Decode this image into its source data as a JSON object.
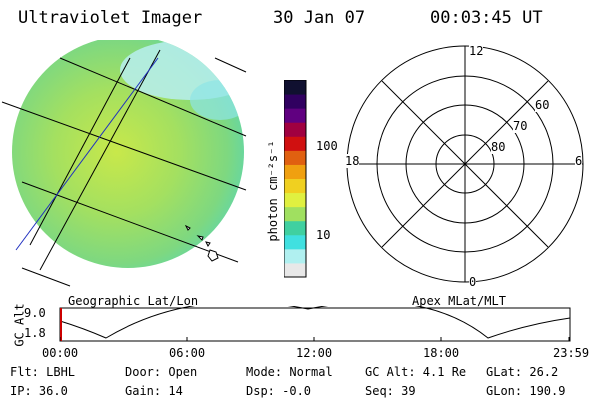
{
  "header": {
    "title": "Ultraviolet Imager",
    "date": "30 Jan 07",
    "time": "00:03:45 UT"
  },
  "colorbar": {
    "unit": "photon cm⁻²s⁻¹",
    "tick_high": "100",
    "tick_low": "10",
    "colors": [
      "#e8e8e8",
      "#b0f0f0",
      "#40e0e0",
      "#40d0a0",
      "#a0e060",
      "#e0f040",
      "#f0d020",
      "#f0a010",
      "#e06010",
      "#d01010",
      "#a00040",
      "#600080",
      "#300060",
      "#101030"
    ]
  },
  "left_panel": {
    "caption": "Geographic Lat/Lon",
    "disk_color": "#9be26b",
    "edge_color": "#66ddee"
  },
  "polar": {
    "caption": "Apex MLat/MLT",
    "label_top": "12",
    "label_bottom": "0",
    "label_left": "18",
    "label_right": "6",
    "rings": [
      "60",
      "70",
      "80"
    ]
  },
  "timeline": {
    "ylabel": "GC Alt",
    "ymax": "9.0",
    "ymin": "1.8",
    "ticks": [
      "00:00",
      "06:00",
      "12:00",
      "18:00",
      "23:59"
    ],
    "marker_color": "#cc0000"
  },
  "info": {
    "flt": "Flt: LBHL",
    "door": "Door: Open",
    "mode": "Mode: Normal",
    "gcalt": "GC Alt: 4.1 Re",
    "glat": "GLat:  26.2",
    "ip": "IP: 36.0",
    "gain": "Gain: 14",
    "dsp": "Dsp:   -0.0",
    "seq": "Seq: 39",
    "glon": "GLon: 190.9"
  }
}
